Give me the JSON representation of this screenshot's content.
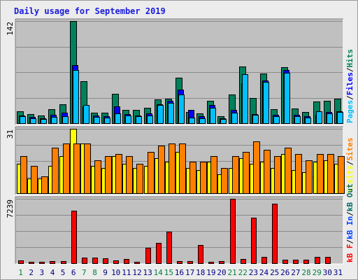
{
  "page": {
    "title": "Daily usage for September 2019"
  },
  "colors": {
    "hits": "#00805c",
    "files": "#0000ff",
    "pages": "#00c0ff",
    "visits": "#ffff00",
    "sites": "#ff8000",
    "kbout": "#006b63",
    "kbin": "#0040ff",
    "kbf": "#ff0000",
    "panel_bg": "#c0c0c0",
    "frame_bg": "#ececec",
    "grid": "#8a8a8a",
    "weekend_day": "#008040",
    "weekday_day": "#000080"
  },
  "chart_data": [
    {
      "type": "bar",
      "panel": "top",
      "ymax_label": "142",
      "ylim": [
        0,
        142
      ],
      "x": [
        "1",
        "2",
        "3",
        "4",
        "5",
        "6",
        "7",
        "8",
        "9",
        "10",
        "11",
        "12",
        "13",
        "14",
        "15",
        "16",
        "17",
        "18",
        "19",
        "20",
        "21",
        "22",
        "23",
        "24",
        "25",
        "26",
        "27",
        "28",
        "29",
        "30",
        "31"
      ],
      "legend": [
        {
          "text": "Pages",
          "color": "#00c0ff"
        },
        {
          "text": "/",
          "color": "#000000"
        },
        {
          "text": "Files",
          "color": "#0000ff"
        },
        {
          "text": "/",
          "color": "#000000"
        },
        {
          "text": "Hits",
          "color": "#00805c"
        }
      ],
      "series": [
        {
          "name": "Hits",
          "color": "#00805c",
          "values": [
            17,
            13,
            11,
            19,
            26,
            142,
            58,
            15,
            15,
            41,
            18,
            18,
            21,
            33,
            34,
            63,
            16,
            14,
            31,
            10,
            40,
            79,
            35,
            69,
            19,
            78,
            20,
            16,
            30,
            31,
            34
          ]
        },
        {
          "name": "Files",
          "color": "#0000ff",
          "values": [
            11,
            9,
            7,
            12,
            15,
            81,
            23,
            11,
            10,
            23,
            13,
            11,
            14,
            26,
            31,
            47,
            18,
            10,
            25,
            7,
            18,
            55,
            13,
            59,
            12,
            74,
            12,
            10,
            12,
            16,
            17
          ]
        },
        {
          "name": "Pages",
          "color": "#00c0ff",
          "values": [
            10,
            7,
            6,
            9,
            10,
            74,
            25,
            9,
            8,
            14,
            11,
            10,
            11,
            25,
            28,
            40,
            8,
            7,
            21,
            6,
            15,
            68,
            12,
            57,
            10,
            70,
            10,
            8,
            17,
            14,
            16
          ]
        }
      ]
    },
    {
      "type": "bar",
      "panel": "middle",
      "ymax_label": "31",
      "ylim": [
        0,
        31
      ],
      "x": [
        "1",
        "2",
        "3",
        "4",
        "5",
        "6",
        "7",
        "8",
        "9",
        "10",
        "11",
        "12",
        "13",
        "14",
        "15",
        "16",
        "17",
        "18",
        "19",
        "20",
        "21",
        "22",
        "23",
        "24",
        "25",
        "26",
        "27",
        "28",
        "29",
        "30",
        "31"
      ],
      "legend": [
        {
          "text": "Visits",
          "color": "#ffff00"
        },
        {
          "text": "/",
          "color": "#000000"
        },
        {
          "text": "Sites",
          "color": "#ff8000"
        }
      ],
      "series": [
        {
          "name": "Visits",
          "color": "#ffff00",
          "values": [
            14,
            7,
            7,
            13,
            18,
            31,
            24,
            13,
            12,
            18,
            14,
            12,
            13,
            17,
            15,
            20,
            12,
            11,
            15,
            9,
            12,
            17,
            14,
            15,
            12,
            19,
            11,
            10,
            15,
            16,
            14
          ]
        },
        {
          "name": "Sites",
          "color": "#ff8000",
          "values": [
            18,
            13,
            8,
            22,
            24,
            24,
            24,
            16,
            18,
            19,
            18,
            14,
            20,
            23,
            24,
            24,
            15,
            15,
            18,
            12,
            18,
            20,
            25,
            21,
            18,
            22,
            19,
            16,
            19,
            19,
            18
          ]
        }
      ]
    },
    {
      "type": "bar",
      "panel": "bottom",
      "ymax_label": "7239",
      "ylim": [
        0,
        7239
      ],
      "x": [
        "1",
        "2",
        "3",
        "4",
        "5",
        "6",
        "7",
        "8",
        "9",
        "10",
        "11",
        "12",
        "13",
        "14",
        "15",
        "16",
        "17",
        "18",
        "19",
        "20",
        "21",
        "22",
        "23",
        "24",
        "25",
        "26",
        "27",
        "28",
        "29",
        "30",
        "31"
      ],
      "legend": [
        {
          "text": "kB F",
          "color": "#ff0000"
        },
        {
          "text": "/",
          "color": "#000000"
        },
        {
          "text": "kB In",
          "color": "#0040ff"
        },
        {
          "text": "/",
          "color": "#000000"
        },
        {
          "text": "kB Out",
          "color": "#006b63"
        }
      ],
      "series": [
        {
          "name": "kB F",
          "color": "#ff0000",
          "values": [
            320,
            190,
            190,
            220,
            220,
            5890,
            620,
            620,
            560,
            330,
            490,
            190,
            1760,
            2250,
            3540,
            270,
            270,
            2060,
            190,
            270,
            7239,
            460,
            5150,
            690,
            6700,
            360,
            410,
            360,
            680,
            680,
            0
          ]
        }
      ]
    }
  ],
  "x_axis": {
    "days": [
      "1",
      "2",
      "3",
      "4",
      "5",
      "6",
      "7",
      "8",
      "9",
      "10",
      "11",
      "12",
      "13",
      "14",
      "15",
      "16",
      "17",
      "18",
      "19",
      "20",
      "21",
      "22",
      "23",
      "24",
      "25",
      "26",
      "27",
      "28",
      "29",
      "30",
      "31"
    ],
    "weekend_days": [
      "1",
      "7",
      "8",
      "14",
      "15",
      "21",
      "22",
      "28",
      "29"
    ]
  }
}
